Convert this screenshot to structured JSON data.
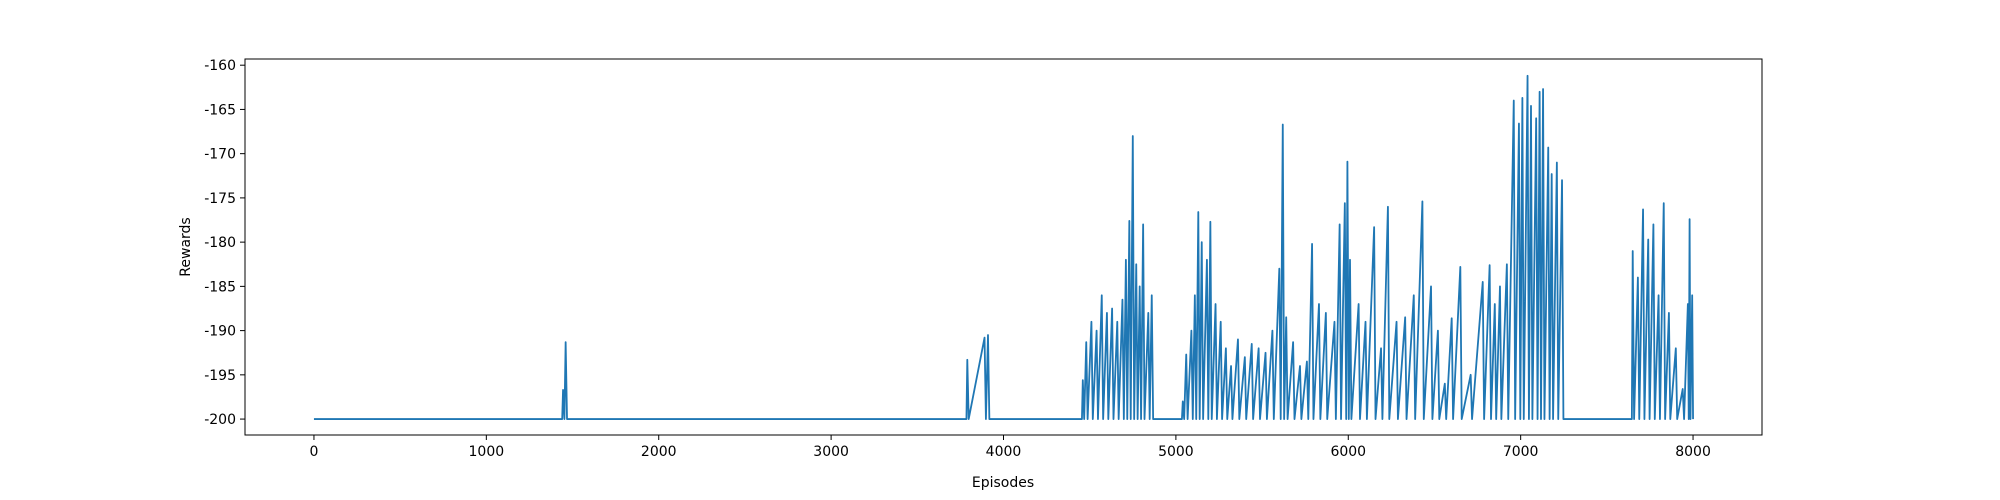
{
  "chart_data": {
    "type": "line",
    "xlabel": "Episodes",
    "ylabel": "Rewards",
    "xlim": [
      -400,
      8400
    ],
    "ylim": [
      -201.8,
      -159.3
    ],
    "xticks": [
      0,
      1000,
      2000,
      3000,
      4000,
      5000,
      6000,
      7000,
      8000
    ],
    "yticks": [
      -200,
      -195,
      -190,
      -185,
      -180,
      -175,
      -170,
      -165,
      -160
    ],
    "series": [
      {
        "name": "Rewards",
        "color": "#1f77b4",
        "x": [
          0,
          1440,
          1445,
          1453,
          1460,
          1468,
          3785,
          3790,
          3798,
          3890,
          3898,
          3910,
          3918,
          4455,
          4460,
          4468,
          4480,
          4488,
          4510,
          4518,
          4540,
          4548,
          4570,
          4578,
          4600,
          4608,
          4630,
          4638,
          4660,
          4668,
          4690,
          4698,
          4710,
          4718,
          4730,
          4738,
          4750,
          4758,
          4770,
          4778,
          4790,
          4798,
          4810,
          4818,
          4840,
          4848,
          4860,
          4868,
          5035,
          5040,
          5048,
          5060,
          5068,
          5090,
          5098,
          5110,
          5118,
          5130,
          5138,
          5150,
          5158,
          5180,
          5188,
          5200,
          5208,
          5230,
          5238,
          5260,
          5268,
          5290,
          5298,
          5320,
          5328,
          5360,
          5368,
          5400,
          5408,
          5440,
          5448,
          5480,
          5488,
          5520,
          5528,
          5560,
          5568,
          5600,
          5608,
          5620,
          5628,
          5640,
          5648,
          5680,
          5688,
          5720,
          5728,
          5760,
          5768,
          5790,
          5798,
          5830,
          5838,
          5870,
          5878,
          5920,
          5928,
          5950,
          5958,
          5980,
          5988,
          5995,
          6003,
          6010,
          6018,
          6060,
          6068,
          6100,
          6108,
          6150,
          6158,
          6190,
          6198,
          6230,
          6238,
          6280,
          6288,
          6330,
          6338,
          6380,
          6388,
          6430,
          6438,
          6480,
          6488,
          6520,
          6528,
          6560,
          6568,
          6600,
          6608,
          6650,
          6658,
          6710,
          6718,
          6780,
          6788,
          6820,
          6828,
          6850,
          6858,
          6880,
          6888,
          6920,
          6928,
          6960,
          6968,
          6990,
          6998,
          7010,
          7018,
          7040,
          7048,
          7060,
          7068,
          7090,
          7098,
          7110,
          7118,
          7130,
          7138,
          7160,
          7168,
          7180,
          7188,
          7210,
          7218,
          7240,
          7248,
          7645,
          7650,
          7658,
          7680,
          7688,
          7710,
          7718,
          7740,
          7748,
          7770,
          7778,
          7800,
          7808,
          7830,
          7838,
          7860,
          7868,
          7900,
          7908,
          7940,
          7948,
          7970,
          7975,
          7980,
          7985,
          7995,
          8000
        ],
        "values": [
          -200,
          -200,
          -196.7,
          -200,
          -191.3,
          -200,
          -200,
          -193.3,
          -200,
          -190.8,
          -200,
          -190.5,
          -200,
          -200,
          -195.6,
          -200,
          -191.3,
          -200,
          -189,
          -200,
          -190,
          -200,
          -186,
          -200,
          -188,
          -200,
          -187.5,
          -200,
          -189,
          -200,
          -186.5,
          -200,
          -182,
          -200,
          -177.6,
          -200,
          -168,
          -200,
          -182.5,
          -200,
          -185,
          -200,
          -178,
          -200,
          -188,
          -200,
          -186,
          -200,
          -200,
          -198,
          -200,
          -192.7,
          -200,
          -190,
          -200,
          -186,
          -200,
          -176.6,
          -200,
          -180,
          -200,
          -182,
          -200,
          -177.7,
          -200,
          -187,
          -200,
          -189,
          -200,
          -192,
          -200,
          -194,
          -200,
          -191,
          -200,
          -193,
          -200,
          -191.5,
          -200,
          -192,
          -200,
          -192.5,
          -200,
          -190,
          -200,
          -183,
          -200,
          -166.7,
          -200,
          -188.5,
          -200,
          -191.3,
          -200,
          -194,
          -200,
          -193.5,
          -200,
          -180.2,
          -200,
          -187,
          -200,
          -188,
          -200,
          -189,
          -200,
          -178,
          -200,
          -175.6,
          -200,
          -170.9,
          -200,
          -182,
          -200,
          -187,
          -200,
          -189,
          -200,
          -178.3,
          -200,
          -192,
          -200,
          -176,
          -200,
          -189,
          -200,
          -188.5,
          -200,
          -186,
          -200,
          -175.4,
          -200,
          -185,
          -200,
          -190,
          -200,
          -196,
          -200,
          -188.6,
          -200,
          -182.8,
          -200,
          -195,
          -200,
          -184.5,
          -200,
          -182.6,
          -200,
          -187,
          -200,
          -185,
          -200,
          -182.5,
          -200,
          -164,
          -200,
          -166.6,
          -200,
          -163.7,
          -200,
          -161.2,
          -200,
          -164.6,
          -200,
          -166,
          -200,
          -163,
          -200,
          -162.7,
          -200,
          -169.3,
          -200,
          -172.3,
          -200,
          -171,
          -200,
          -173,
          -200,
          -200,
          -181,
          -200,
          -184,
          -200,
          -176.3,
          -200,
          -179.7,
          -200,
          -178,
          -200,
          -186,
          -200,
          -175.6,
          -200,
          -188,
          -200,
          -192,
          -200,
          -196.6,
          -200,
          -187,
          -200,
          -177.4,
          -200,
          -186,
          -200
        ]
      }
    ]
  }
}
